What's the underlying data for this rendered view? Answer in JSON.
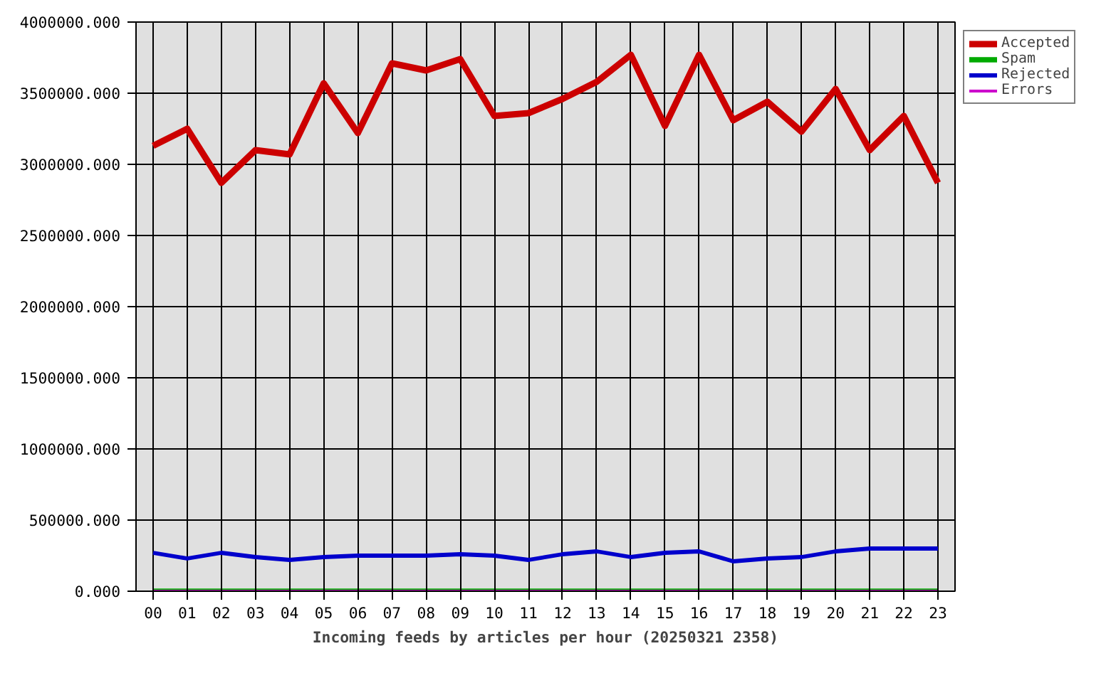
{
  "chart_data": {
    "type": "line",
    "xlabel": "Incoming feeds by articles per hour (20250321 2358)",
    "categories": [
      "00",
      "01",
      "02",
      "03",
      "04",
      "05",
      "06",
      "07",
      "08",
      "09",
      "10",
      "11",
      "12",
      "13",
      "14",
      "15",
      "16",
      "17",
      "18",
      "19",
      "20",
      "21",
      "22",
      "23"
    ],
    "series": [
      {
        "name": "Accepted",
        "color": "#cc0000",
        "values": [
          3130000,
          3250000,
          2870000,
          3100000,
          3070000,
          3570000,
          3220000,
          3710000,
          3660000,
          3740000,
          3340000,
          3360000,
          3460000,
          3580000,
          3770000,
          3270000,
          3770000,
          3310000,
          3440000,
          3230000,
          3530000,
          3100000,
          3340000,
          2870000
        ]
      },
      {
        "name": "Spam",
        "color": "#00aa00",
        "values": [
          0,
          0,
          0,
          0,
          0,
          0,
          0,
          0,
          0,
          0,
          0,
          0,
          0,
          0,
          0,
          0,
          0,
          0,
          0,
          0,
          0,
          0,
          0,
          0
        ]
      },
      {
        "name": "Rejected",
        "color": "#0000cc",
        "values": [
          270000,
          230000,
          270000,
          240000,
          220000,
          240000,
          250000,
          250000,
          250000,
          260000,
          250000,
          220000,
          260000,
          280000,
          240000,
          270000,
          280000,
          210000,
          230000,
          240000,
          280000,
          300000,
          300000,
          300000
        ]
      },
      {
        "name": "Errors",
        "color": "#cc00cc",
        "values": [
          0,
          0,
          0,
          0,
          0,
          0,
          0,
          0,
          0,
          0,
          0,
          0,
          0,
          0,
          0,
          0,
          0,
          0,
          0,
          0,
          0,
          0,
          0,
          0
        ]
      }
    ],
    "ylim": [
      0,
      4000000
    ],
    "yticks": [
      {
        "value": 0,
        "label": "0.000"
      },
      {
        "value": 500000,
        "label": "500000.000"
      },
      {
        "value": 1000000,
        "label": "1000000.000"
      },
      {
        "value": 1500000,
        "label": "1500000.000"
      },
      {
        "value": 2000000,
        "label": "2000000.000"
      },
      {
        "value": 2500000,
        "label": "2500000.000"
      },
      {
        "value": 3000000,
        "label": "3000000.000"
      },
      {
        "value": 3500000,
        "label": "3500000.000"
      },
      {
        "value": 4000000,
        "label": "4000000.000"
      }
    ],
    "grid": true,
    "legend": "top right",
    "marker": "none",
    "line_style": "solid"
  }
}
